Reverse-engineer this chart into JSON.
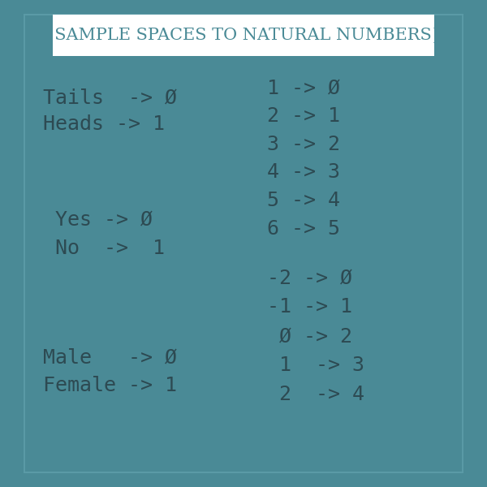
{
  "bg_color": "#4a8a96",
  "border_color": "#2d5f6b",
  "title_bg": "#ffffff",
  "title_text": "{SAMPLE SPACES TO NATURAL NUMBERS}",
  "title_color": "#4a8a96",
  "text_color": "#2d4a52",
  "font_size": 18,
  "title_font_size": 15,
  "left_lines": [
    "Tails  -> Ø",
    "Heads -> 1",
    "",
    " Yes -> Ø",
    " No  ->  1",
    "",
    "Male   -> Ø",
    "Female -> 1"
  ],
  "right_top_lines": [
    "1 -> Ø",
    "2 -> 1",
    "3 -> 2",
    "4 -> 3",
    "5 -> 4",
    "6 -> 5"
  ],
  "right_bottom_lines": [
    "-2 -> Ø",
    "-1 -> 1",
    " Ø -> 2",
    " 1  -> 3",
    " 2  -> 4"
  ]
}
